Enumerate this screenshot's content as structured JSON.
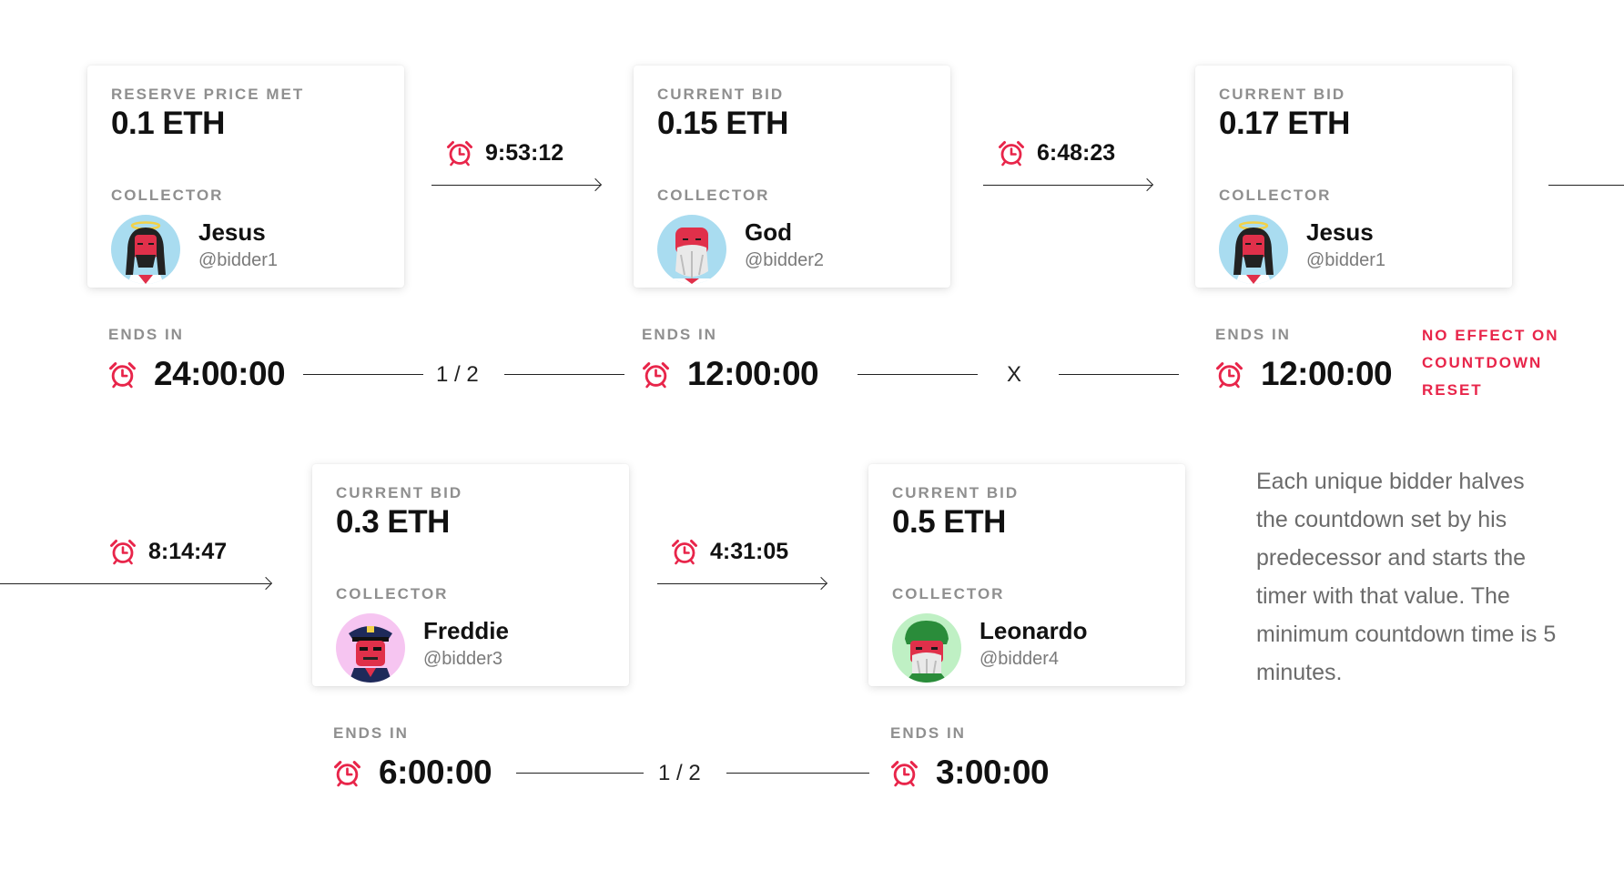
{
  "colors": {
    "accent": "#e8254a",
    "text": "#111111",
    "muted": "#8f8f8f"
  },
  "cards": [
    {
      "label": "RESERVE PRICE MET",
      "price": "0.1 ETH",
      "collector_label": "COLLECTOR",
      "name": "Jesus",
      "handle": "@bidder1",
      "avatar": "jesus-avatar-icon"
    },
    {
      "label": "CURRENT BID",
      "price": "0.15 ETH",
      "collector_label": "COLLECTOR",
      "name": "God",
      "handle": "@bidder2",
      "avatar": "god-avatar-icon"
    },
    {
      "label": "CURRENT BID",
      "price": "0.17 ETH",
      "collector_label": "COLLECTOR",
      "name": "Jesus",
      "handle": "@bidder1",
      "avatar": "jesus-avatar-icon"
    },
    {
      "label": "CURRENT BID",
      "price": "0.3 ETH",
      "collector_label": "COLLECTOR",
      "name": "Freddie",
      "handle": "@bidder3",
      "avatar": "police-avatar-icon"
    },
    {
      "label": "CURRENT BID",
      "price": "0.5 ETH",
      "collector_label": "COLLECTOR",
      "name": "Leonardo",
      "handle": "@bidder4",
      "avatar": "leonardo-avatar-icon"
    }
  ],
  "transition_timers": [
    "9:53:12",
    "6:48:23",
    "8:14:47",
    "4:31:05"
  ],
  "countdowns": [
    {
      "label": "ENDS IN",
      "time": "24:00:00"
    },
    {
      "label": "ENDS IN",
      "time": "12:00:00"
    },
    {
      "label": "ENDS IN",
      "time": "12:00:00"
    },
    {
      "label": "ENDS IN",
      "time": "6:00:00"
    },
    {
      "label": "ENDS IN",
      "time": "3:00:00"
    }
  ],
  "operators": [
    "1 / 2",
    "X",
    "1 / 2"
  ],
  "no_effect_note": "NO EFFECT ON COUNTDOWN RESET",
  "description": "Each unique bidder halves the countdown set by his predecessor and starts the timer with that value. The minimum countdown time is 5 minutes."
}
